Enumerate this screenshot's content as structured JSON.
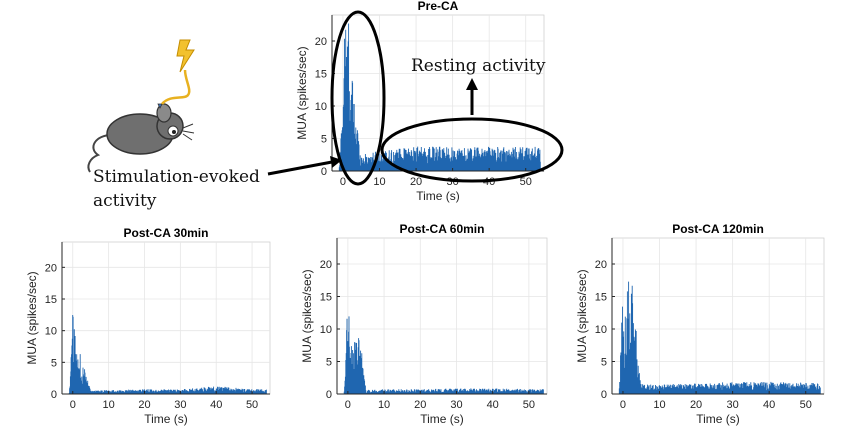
{
  "annotations": {
    "stimulation_label_line1": "Stimulation-evoked",
    "stimulation_label_line2": "activity",
    "resting_label": "Resting activity"
  },
  "icons": [
    "mouse-icon",
    "lightning-bolt-icon"
  ],
  "colors": {
    "trace": "#1f66b0",
    "axis": "#262626",
    "grid": "#e6e6e6"
  },
  "chart_data": [
    {
      "type": "area",
      "title": "Pre-CA",
      "xlabel": "Time (s)",
      "ylabel": "MUA (spikes/sec)",
      "xlim": [
        -3,
        55
      ],
      "ylim": [
        0,
        24
      ],
      "xticks": [
        0,
        10,
        20,
        30,
        40,
        50
      ],
      "yticks": [
        0,
        5,
        10,
        15,
        20
      ],
      "grid": true,
      "series": [
        {
          "x": [
            -1,
            0,
            0.5,
            1,
            1.5,
            2,
            2.5,
            3,
            3.5,
            4,
            4.5,
            5,
            10,
            20,
            30,
            40,
            50,
            54
          ],
          "values": [
            0.5,
            10,
            22,
            16,
            20,
            14,
            12,
            9,
            7,
            6,
            3,
            2,
            2.5,
            3,
            3,
            3,
            3,
            3
          ]
        }
      ]
    },
    {
      "type": "area",
      "title": "Post-CA 30min",
      "xlabel": "Time (s)",
      "ylabel": "MUA (spikes/sec)",
      "xlim": [
        -3,
        55
      ],
      "ylim": [
        0,
        24
      ],
      "xticks": [
        0,
        10,
        20,
        30,
        40,
        50
      ],
      "yticks": [
        0,
        5,
        10,
        15,
        20
      ],
      "grid": true,
      "series": [
        {
          "x": [
            -1,
            0,
            0.5,
            1,
            1.5,
            2,
            2.5,
            3,
            3.5,
            4,
            5,
            10,
            20,
            30,
            40,
            50,
            54
          ],
          "values": [
            0.2,
            11,
            8,
            6,
            5,
            5.5,
            4.5,
            3.5,
            3,
            2,
            0.4,
            0.5,
            0.6,
            0.6,
            1,
            0.6,
            0.6
          ]
        }
      ]
    },
    {
      "type": "area",
      "title": "Post-CA 60min",
      "xlabel": "Time (s)",
      "ylabel": "MUA (spikes/sec)",
      "xlim": [
        -3,
        55
      ],
      "ylim": [
        0,
        24
      ],
      "xticks": [
        0,
        10,
        20,
        30,
        40,
        50
      ],
      "yticks": [
        0,
        5,
        10,
        15,
        20
      ],
      "grid": true,
      "series": [
        {
          "x": [
            -1,
            0,
            0.5,
            1,
            1.5,
            2,
            2.5,
            3,
            3.5,
            4,
            5,
            10,
            20,
            30,
            40,
            50,
            54
          ],
          "values": [
            0.3,
            12,
            9,
            7,
            7,
            8,
            6.5,
            7,
            7.5,
            4,
            0.5,
            0.6,
            0.6,
            0.7,
            0.7,
            0.6,
            0.6
          ]
        }
      ]
    },
    {
      "type": "area",
      "title": "Post-CA 120min",
      "xlabel": "Time (s)",
      "ylabel": "MUA (spikes/sec)",
      "xlim": [
        -3,
        55
      ],
      "ylim": [
        0,
        24
      ],
      "xticks": [
        0,
        10,
        20,
        30,
        40,
        50
      ],
      "yticks": [
        0,
        5,
        10,
        15,
        20
      ],
      "grid": true,
      "series": [
        {
          "x": [
            -1,
            0,
            0.5,
            1,
            1.5,
            2,
            2.5,
            3,
            3.5,
            4,
            5,
            10,
            20,
            30,
            40,
            50,
            54
          ],
          "values": [
            1,
            13,
            10,
            12,
            16,
            10,
            17,
            12,
            11,
            4,
            1.2,
            1.2,
            1.3,
            1.5,
            1.5,
            1.4,
            1.4
          ]
        }
      ]
    }
  ]
}
